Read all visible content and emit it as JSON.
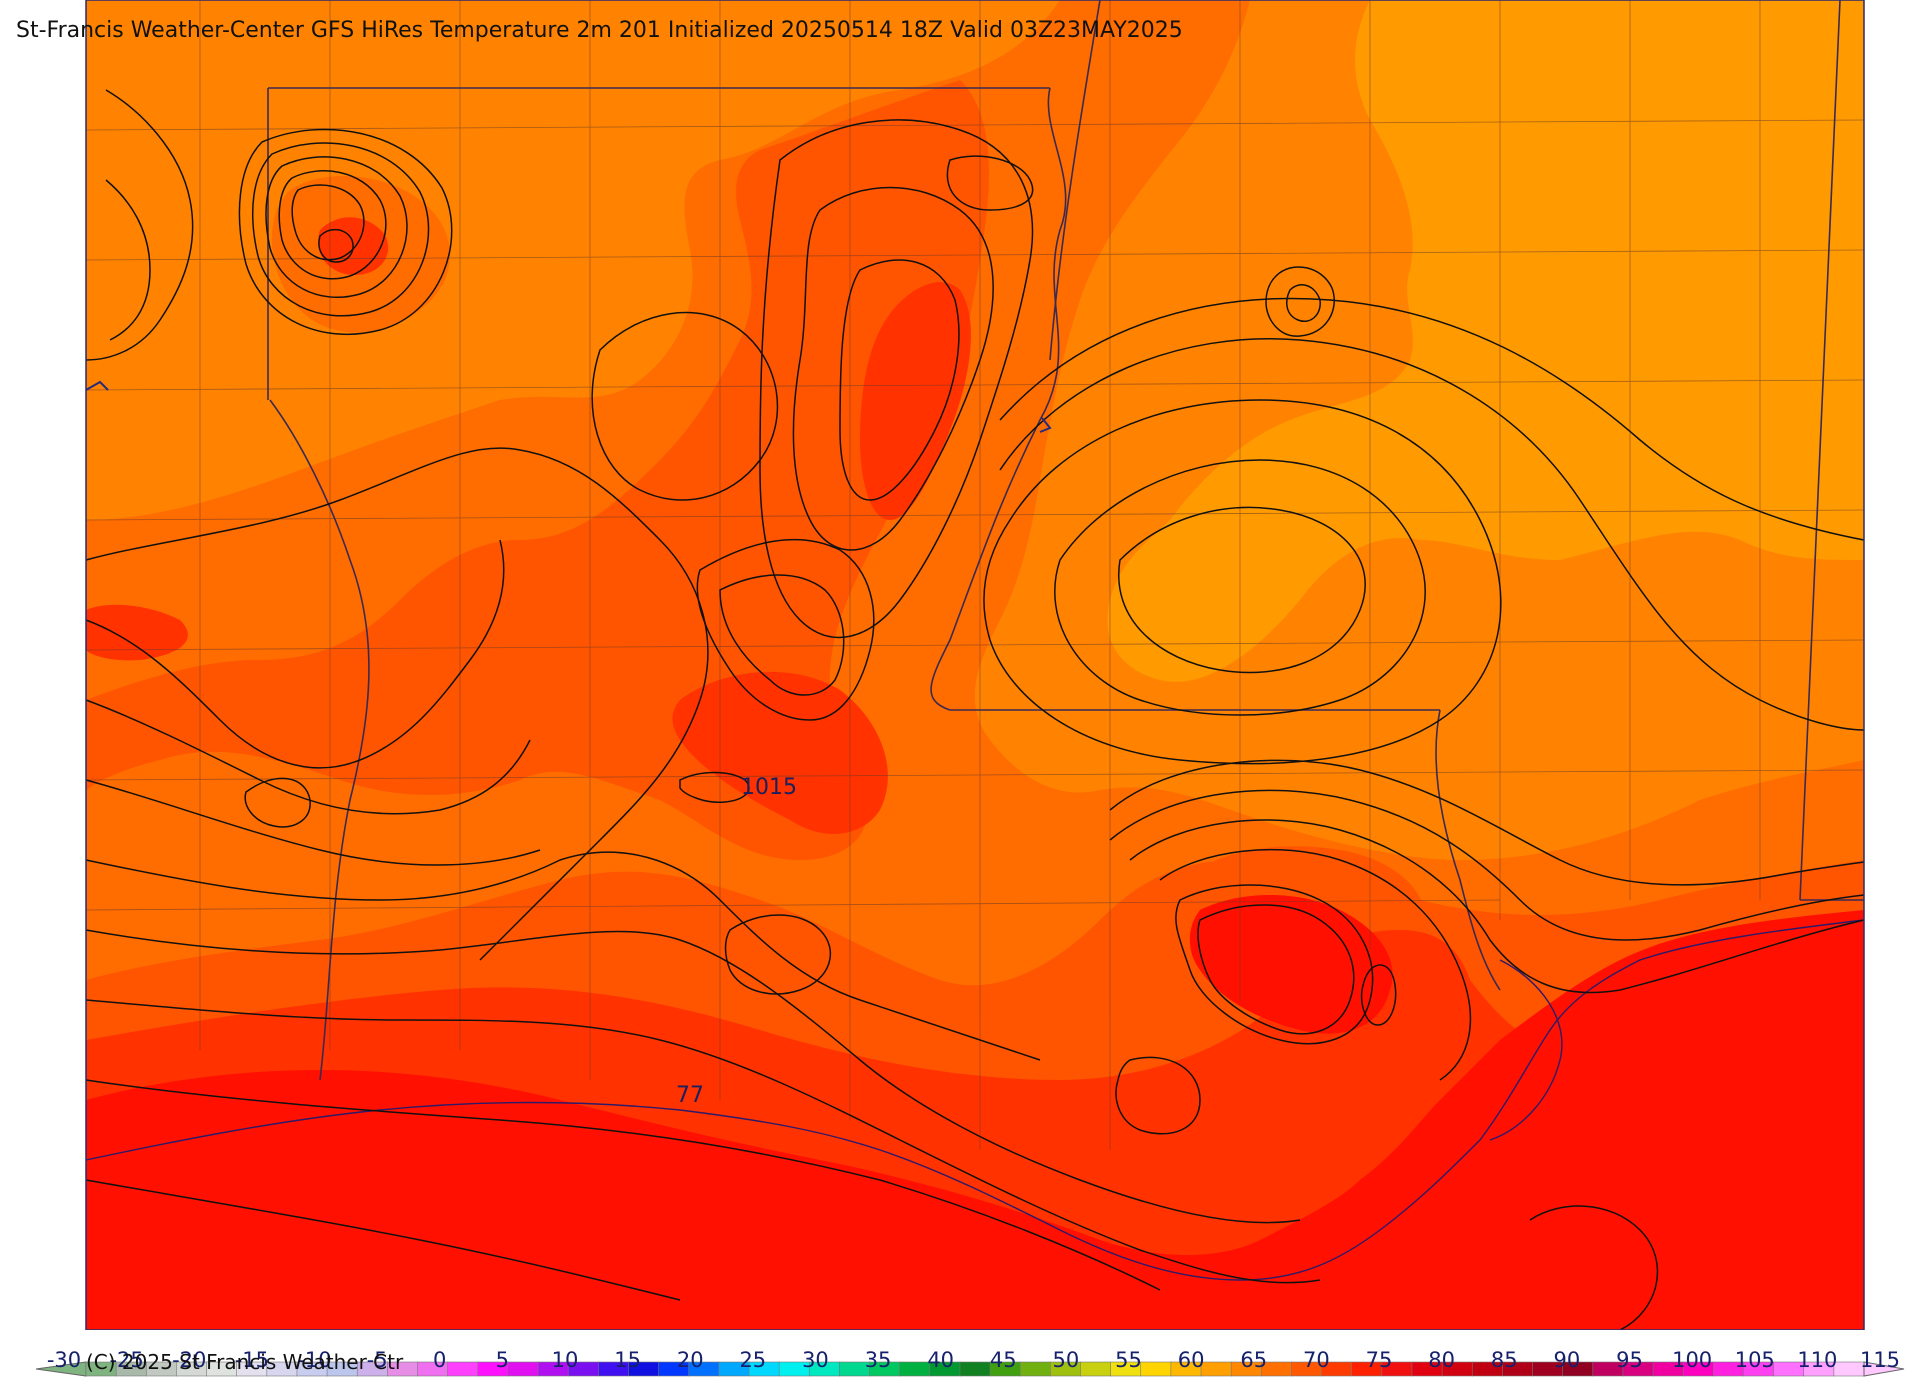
{
  "title": "St-Francis Weather-Center GFS HiRes Temperature 2m  201 Initialized 20250514 18Z Valid 03Z23MAY2025",
  "copyright": "(C) 2025 St Francis Weather Ctr",
  "map": {
    "variable": "2m temperature (shaded) with pressure contours",
    "contour_labels": [
      "1015",
      "77"
    ],
    "shade_colors": {
      "t60": "#ff9a00",
      "t65": "#ff8300",
      "t70": "#ff6c00",
      "t75": "#ff5400",
      "t80": "#ff3200",
      "t85": "#ff1000"
    }
  },
  "colorbar": {
    "ticks": [
      "-30",
      "-25",
      "-20",
      "-15",
      "-10",
      "-5",
      "0",
      "5",
      "10",
      "15",
      "20",
      "25",
      "30",
      "35",
      "40",
      "45",
      "50",
      "55",
      "60",
      "65",
      "70",
      "75",
      "80",
      "85",
      "90",
      "95",
      "100",
      "105",
      "110",
      "115"
    ],
    "colors": [
      "#7fb37f",
      "#a9b9a9",
      "#c1c8c1",
      "#d4d9d4",
      "#dfe3df",
      "#e4e0ee",
      "#d6d6ee",
      "#c8ccee",
      "#bcc6ec",
      "#cdb0ea",
      "#e68ee6",
      "#f06ef0",
      "#ff40ff",
      "#ff10ff",
      "#e010f0",
      "#b010f0",
      "#7a10f0",
      "#4010f0",
      "#1010e0",
      "#0038ff",
      "#0070ff",
      "#00a8ff",
      "#00d8ff",
      "#00f0f0",
      "#00e8c0",
      "#00d890",
      "#00c860",
      "#00b040",
      "#009830",
      "#108020",
      "#40a010",
      "#70b010",
      "#a0c010",
      "#c8d010",
      "#f0e010",
      "#ffd400",
      "#ffb800",
      "#ffa000",
      "#ff8800",
      "#ff7000",
      "#ff5800",
      "#ff3c00",
      "#ff2000",
      "#f01010",
      "#e00010",
      "#d00010",
      "#c00010",
      "#b00018",
      "#a00020",
      "#900020",
      "#c00060",
      "#d80080",
      "#f000a0",
      "#ff00c0",
      "#ff20e0",
      "#ff40f0",
      "#ff70ff",
      "#ffa0ff",
      "#ffc8ff"
    ]
  }
}
